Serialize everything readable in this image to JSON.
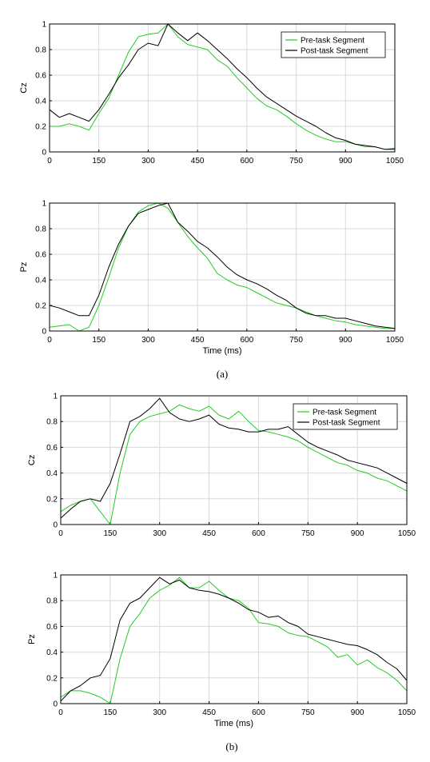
{
  "colors": {
    "pre": "#22cc22",
    "post": "#000000"
  },
  "captions": [
    "(a)",
    "(b)"
  ],
  "chart_data": [
    {
      "type": "line",
      "panel": "a-top",
      "ylabel": "Cz",
      "xlabel": "",
      "xlim": [
        0,
        1050
      ],
      "ylim": [
        0,
        1
      ],
      "xticks": [
        "0",
        "150",
        "300",
        "450",
        "600",
        "750",
        "900",
        "1050"
      ],
      "yticks": [
        "0",
        "0.2",
        "0.4",
        "0.6",
        "0.8",
        "1"
      ],
      "grid": true,
      "legend": "top-right",
      "x": [
        0,
        30,
        60,
        90,
        120,
        150,
        180,
        210,
        240,
        270,
        300,
        330,
        360,
        390,
        420,
        450,
        480,
        510,
        540,
        570,
        600,
        630,
        660,
        690,
        720,
        750,
        780,
        810,
        840,
        870,
        900,
        930,
        960,
        990,
        1020,
        1050
      ],
      "series": [
        {
          "name": "Pre-task Segment",
          "color": "pre",
          "values": [
            0.2,
            0.2,
            0.22,
            0.2,
            0.17,
            0.3,
            0.42,
            0.6,
            0.78,
            0.9,
            0.92,
            0.93,
            1.0,
            0.9,
            0.84,
            0.82,
            0.8,
            0.72,
            0.67,
            0.58,
            0.5,
            0.42,
            0.36,
            0.33,
            0.28,
            0.22,
            0.17,
            0.13,
            0.1,
            0.08,
            0.08,
            0.06,
            0.04,
            0.04,
            0.02,
            0.03
          ]
        },
        {
          "name": "Post-task Segment",
          "color": "post",
          "values": [
            0.33,
            0.27,
            0.3,
            0.27,
            0.24,
            0.33,
            0.45,
            0.58,
            0.68,
            0.8,
            0.85,
            0.83,
            1.0,
            0.93,
            0.87,
            0.93,
            0.87,
            0.8,
            0.73,
            0.65,
            0.58,
            0.5,
            0.43,
            0.38,
            0.33,
            0.28,
            0.24,
            0.2,
            0.15,
            0.11,
            0.09,
            0.06,
            0.05,
            0.04,
            0.02,
            0.02
          ]
        }
      ]
    },
    {
      "type": "line",
      "panel": "a-bottom",
      "ylabel": "Pz",
      "xlabel": "Time (ms)",
      "xlim": [
        0,
        1050
      ],
      "ylim": [
        0,
        1
      ],
      "xticks": [
        "0",
        "150",
        "300",
        "450",
        "600",
        "750",
        "900",
        "1050"
      ],
      "yticks": [
        "0",
        "0.2",
        "0.4",
        "0.6",
        "0.8",
        "1"
      ],
      "grid": true,
      "x": [
        0,
        30,
        60,
        90,
        120,
        150,
        180,
        210,
        240,
        270,
        300,
        330,
        360,
        390,
        420,
        450,
        480,
        510,
        540,
        570,
        600,
        630,
        660,
        690,
        720,
        750,
        780,
        810,
        840,
        870,
        900,
        930,
        960,
        990,
        1020,
        1050
      ],
      "series": [
        {
          "name": "Pre-task Segment",
          "color": "pre",
          "values": [
            0.03,
            0.04,
            0.05,
            0.0,
            0.03,
            0.2,
            0.42,
            0.65,
            0.82,
            0.93,
            0.98,
            1.0,
            0.96,
            0.85,
            0.74,
            0.65,
            0.57,
            0.45,
            0.4,
            0.36,
            0.34,
            0.3,
            0.26,
            0.22,
            0.2,
            0.18,
            0.15,
            0.12,
            0.1,
            0.08,
            0.07,
            0.05,
            0.04,
            0.03,
            0.02,
            0.02
          ]
        },
        {
          "name": "Post-task Segment",
          "color": "post",
          "values": [
            0.2,
            0.18,
            0.15,
            0.12,
            0.12,
            0.28,
            0.5,
            0.68,
            0.82,
            0.92,
            0.95,
            0.98,
            1.0,
            0.85,
            0.78,
            0.7,
            0.65,
            0.58,
            0.5,
            0.44,
            0.4,
            0.37,
            0.33,
            0.28,
            0.24,
            0.18,
            0.14,
            0.12,
            0.12,
            0.1,
            0.1,
            0.08,
            0.06,
            0.04,
            0.03,
            0.02
          ]
        }
      ]
    },
    {
      "type": "line",
      "panel": "b-top",
      "ylabel": "Cz",
      "xlabel": "",
      "xlim": [
        0,
        1050
      ],
      "ylim": [
        0,
        1
      ],
      "xticks": [
        "0",
        "150",
        "300",
        "450",
        "600",
        "750",
        "900",
        "1050"
      ],
      "yticks": [
        "0",
        "0.2",
        "0.4",
        "0.6",
        "0.8",
        "1"
      ],
      "grid": true,
      "legend": "top-right",
      "x": [
        0,
        30,
        60,
        90,
        120,
        150,
        180,
        210,
        240,
        270,
        300,
        330,
        360,
        390,
        420,
        450,
        480,
        510,
        540,
        570,
        600,
        630,
        660,
        690,
        720,
        750,
        780,
        810,
        840,
        870,
        900,
        930,
        960,
        990,
        1020,
        1050
      ],
      "series": [
        {
          "name": "Pre-task Segment",
          "color": "pre",
          "values": [
            0.1,
            0.15,
            0.18,
            0.2,
            0.1,
            0.0,
            0.4,
            0.7,
            0.8,
            0.84,
            0.86,
            0.88,
            0.93,
            0.9,
            0.88,
            0.92,
            0.85,
            0.82,
            0.88,
            0.8,
            0.73,
            0.72,
            0.7,
            0.68,
            0.65,
            0.6,
            0.56,
            0.52,
            0.48,
            0.46,
            0.42,
            0.4,
            0.36,
            0.34,
            0.3,
            0.26
          ]
        },
        {
          "name": "Post-task Segment",
          "color": "post",
          "values": [
            0.05,
            0.12,
            0.18,
            0.2,
            0.18,
            0.32,
            0.55,
            0.8,
            0.84,
            0.9,
            0.98,
            0.87,
            0.82,
            0.8,
            0.82,
            0.85,
            0.78,
            0.75,
            0.74,
            0.72,
            0.72,
            0.74,
            0.74,
            0.76,
            0.7,
            0.64,
            0.6,
            0.57,
            0.54,
            0.5,
            0.48,
            0.46,
            0.44,
            0.4,
            0.36,
            0.32
          ]
        }
      ]
    },
    {
      "type": "line",
      "panel": "b-bottom",
      "ylabel": "Pz",
      "xlabel": "Time (ms)",
      "xlim": [
        0,
        1050
      ],
      "ylim": [
        0,
        1
      ],
      "xticks": [
        "0",
        "150",
        "300",
        "450",
        "600",
        "750",
        "900",
        "1050"
      ],
      "yticks": [
        "0",
        "0.2",
        "0.4",
        "0.6",
        "0.8",
        "1"
      ],
      "grid": true,
      "x": [
        0,
        30,
        60,
        90,
        120,
        150,
        180,
        210,
        240,
        270,
        300,
        330,
        360,
        390,
        420,
        450,
        480,
        510,
        540,
        570,
        600,
        630,
        660,
        690,
        720,
        750,
        780,
        810,
        840,
        870,
        900,
        930,
        960,
        990,
        1020,
        1050
      ],
      "series": [
        {
          "name": "Pre-task Segment",
          "color": "pre",
          "values": [
            0.05,
            0.1,
            0.1,
            0.08,
            0.05,
            0.0,
            0.35,
            0.6,
            0.7,
            0.82,
            0.88,
            0.92,
            0.98,
            0.9,
            0.9,
            0.95,
            0.88,
            0.82,
            0.8,
            0.74,
            0.63,
            0.62,
            0.6,
            0.55,
            0.53,
            0.52,
            0.48,
            0.44,
            0.36,
            0.38,
            0.3,
            0.34,
            0.28,
            0.24,
            0.18,
            0.1
          ]
        },
        {
          "name": "Post-task Segment",
          "color": "post",
          "values": [
            0.02,
            0.1,
            0.14,
            0.2,
            0.22,
            0.35,
            0.65,
            0.78,
            0.82,
            0.9,
            0.98,
            0.93,
            0.96,
            0.9,
            0.88,
            0.87,
            0.85,
            0.82,
            0.78,
            0.73,
            0.71,
            0.67,
            0.68,
            0.63,
            0.6,
            0.54,
            0.52,
            0.5,
            0.48,
            0.46,
            0.45,
            0.42,
            0.38,
            0.32,
            0.27,
            0.18
          ]
        }
      ]
    }
  ]
}
